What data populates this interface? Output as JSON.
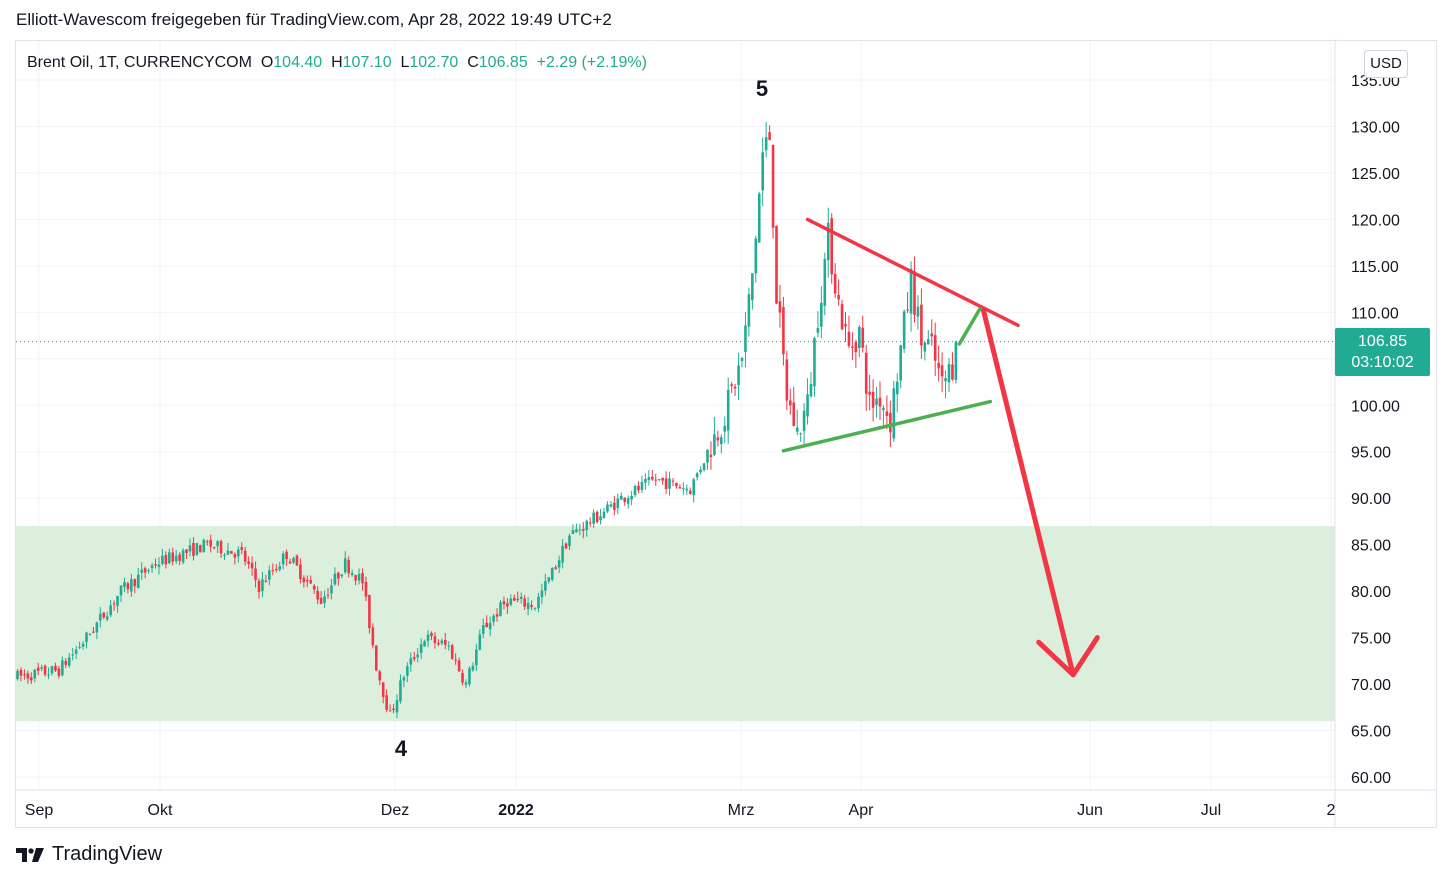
{
  "header": {
    "title": "Elliott-Wavescom freigegeben für TradingView.com, Apr 28, 2022 19:49 UTC+2"
  },
  "legend": {
    "symbol": "Brent Oil, 1T, CURRENCYCOM",
    "open_label": "O",
    "open": "104.40",
    "high_label": "H",
    "high": "107.10",
    "low_label": "L",
    "low": "102.70",
    "close_label": "C",
    "close": "106.85",
    "change": "+2.29 (+2.19%)"
  },
  "currency": "USD",
  "price_tag": {
    "price": "106.85",
    "countdown": "03:10:02"
  },
  "footer": {
    "brand": "TradingView"
  },
  "colors": {
    "up": "#22ab94",
    "down": "#f23645",
    "zone": "#dcefdc",
    "trend_red": "#f23645",
    "trend_green": "#4caf50",
    "grid": "#f0f3fa"
  },
  "chart_data": {
    "type": "candlestick",
    "ylim": [
      58,
      136
    ],
    "y_ticks": [
      "135.00",
      "130.00",
      "125.00",
      "120.00",
      "115.00",
      "110.00",
      "105.00",
      "100.00",
      "95.00",
      "90.00",
      "85.00",
      "80.00",
      "75.00",
      "70.00",
      "65.00",
      "60.00"
    ],
    "x_ticks": [
      {
        "label": "Sep",
        "bold": false
      },
      {
        "label": "Okt",
        "bold": false
      },
      {
        "label": "Dez",
        "bold": false
      },
      {
        "label": "2022",
        "bold": true
      },
      {
        "label": "Mrz",
        "bold": false
      },
      {
        "label": "Apr",
        "bold": false
      },
      {
        "label": "Jun",
        "bold": false
      },
      {
        "label": "Jul",
        "bold": false
      },
      {
        "label": "2",
        "bold": false
      }
    ],
    "zone": {
      "from": 66,
      "to": 87
    },
    "last_price": 106.85,
    "wave_labels": [
      {
        "text": "5",
        "price": 130.9
      },
      {
        "text": "4",
        "price": 65.7
      }
    ],
    "anchors": [
      {
        "i": 0,
        "p": 70.8
      },
      {
        "i": 12,
        "p": 71.5
      },
      {
        "i": 20,
        "p": 75
      },
      {
        "i": 30,
        "p": 80
      },
      {
        "i": 40,
        "p": 83
      },
      {
        "i": 55,
        "p": 85
      },
      {
        "i": 65,
        "p": 84
      },
      {
        "i": 70,
        "p": 80.5
      },
      {
        "i": 78,
        "p": 84
      },
      {
        "i": 88,
        "p": 79
      },
      {
        "i": 95,
        "p": 83
      },
      {
        "i": 100,
        "p": 81
      },
      {
        "i": 104,
        "p": 72
      },
      {
        "i": 108,
        "p": 66.5
      },
      {
        "i": 112,
        "p": 71
      },
      {
        "i": 118,
        "p": 75
      },
      {
        "i": 125,
        "p": 74
      },
      {
        "i": 130,
        "p": 70
      },
      {
        "i": 135,
        "p": 76
      },
      {
        "i": 142,
        "p": 79
      },
      {
        "i": 150,
        "p": 78.5
      },
      {
        "i": 155,
        "p": 82
      },
      {
        "i": 160,
        "p": 86
      },
      {
        "i": 168,
        "p": 88
      },
      {
        "i": 175,
        "p": 90
      },
      {
        "i": 185,
        "p": 92
      },
      {
        "i": 195,
        "p": 91
      },
      {
        "i": 200,
        "p": 95
      },
      {
        "i": 205,
        "p": 99
      },
      {
        "i": 210,
        "p": 105
      },
      {
        "i": 213,
        "p": 114
      },
      {
        "i": 216,
        "p": 127
      },
      {
        "i": 218,
        "p": 129
      },
      {
        "i": 220,
        "p": 112
      },
      {
        "i": 223,
        "p": 101
      },
      {
        "i": 226,
        "p": 97
      },
      {
        "i": 229,
        "p": 100
      },
      {
        "i": 232,
        "p": 110
      },
      {
        "i": 235,
        "p": 118
      },
      {
        "i": 238,
        "p": 111
      },
      {
        "i": 241,
        "p": 106
      },
      {
        "i": 244,
        "p": 108
      },
      {
        "i": 247,
        "p": 100
      },
      {
        "i": 250,
        "p": 101
      },
      {
        "i": 253,
        "p": 98.5
      },
      {
        "i": 256,
        "p": 106
      },
      {
        "i": 259,
        "p": 113.5
      },
      {
        "i": 262,
        "p": 107
      },
      {
        "i": 265,
        "p": 106
      },
      {
        "i": 268,
        "p": 102
      },
      {
        "i": 271,
        "p": 104.4
      },
      {
        "i": 272,
        "p": 106.85
      }
    ],
    "trendlines": [
      {
        "color": "red",
        "from": {
          "i": 229,
          "p": 120
        },
        "to": {
          "i": 290,
          "p": 108.6
        }
      },
      {
        "color": "green",
        "from": {
          "i": 222,
          "p": 95.1
        },
        "to": {
          "i": 282,
          "p": 100.4
        }
      },
      {
        "color": "green",
        "from": {
          "i": 273,
          "p": 106.6
        },
        "to": {
          "i": 279,
          "p": 110.4
        }
      }
    ],
    "projection": {
      "path": [
        {
          "i": 280,
          "p": 110.2
        },
        {
          "i": 306,
          "p": 71
        }
      ],
      "arrowhead": [
        {
          "i": 296,
          "p": 74.5
        },
        {
          "i": 306,
          "p": 71
        },
        {
          "i": 313,
          "p": 75
        }
      ]
    }
  }
}
